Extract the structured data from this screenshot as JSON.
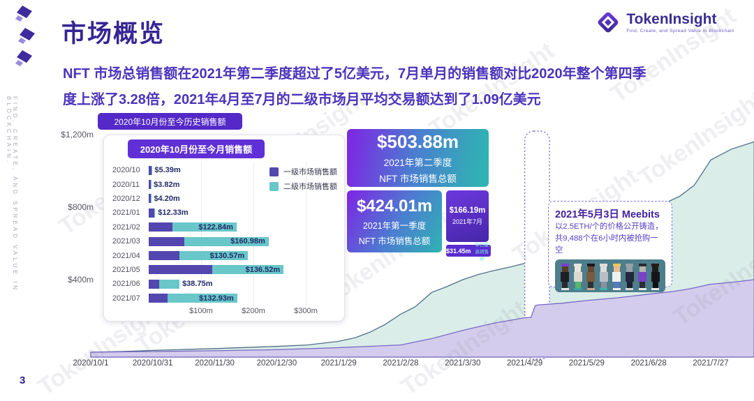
{
  "header": {
    "title": "市场概览",
    "logo_name": "TokenInsight",
    "logo_tagline": "Find, Create, and Spread Value in Blockchain"
  },
  "summary": "NFT 市场总销售额在2021年第二季度超过了5亿美元，7月单月的销售额对比2020年整个第四季度上涨了3.28倍，2021年4月至7月的二级市场月平均交易额达到了1.09亿美元",
  "side_text": "FIND, CREATE, AND SPREAD VALUE IN BLOCKCHAIN.",
  "watermark_text": "TokenInsight",
  "page_number": "3",
  "history_badge": "2020年10月份至今历史销售额",
  "stat_boxes": {
    "q2": {
      "value": "$503.88m",
      "line1": "2021年第二季度",
      "line2": "NFT 市场销售总额"
    },
    "q1": {
      "value": "$424.01m",
      "line1": "2021年第一季度",
      "line2": "NFT 市场销售总额"
    },
    "july": {
      "value": "$166.19m",
      "line1": "2021年7月"
    },
    "daily": {
      "value": "$31.45m",
      "label": "单日最高销售额"
    }
  },
  "callout": {
    "title": "2021年5月3日 Meebits",
    "line1": "以2.5ETH/个的价格公开铸造，",
    "line2": "共9,488个在6小时内被抢购一空",
    "meebits": [
      {
        "hat": "#7a3fd0",
        "head": "#5a3a28",
        "torso": "#1e1e24",
        "legs": "#2a2a30",
        "shoes": "#e8e8e8"
      },
      {
        "hat": "#e8e4de",
        "head": "#e8e4de",
        "torso": "#dcd8d2",
        "legs": "#55b868",
        "shoes": "#3aa8a0"
      },
      {
        "hat": "#1a1a1a",
        "head": "#6a4530",
        "torso": "#7a5a40",
        "legs": "#33302c",
        "shoes": "#c8a898"
      },
      {
        "hat": "#e0ddd8",
        "head": "#e0ddd8",
        "torso": "#b8bcc4",
        "legs": "#8a90a0",
        "shoes": "#40b0a8"
      },
      {
        "hat": "#e8c860",
        "head": "#e8ba90",
        "torso": "#f0f0ee",
        "legs": "#5878c0",
        "shoes": "#f0f0f0"
      },
      {
        "hat": "#9aa0a8",
        "head": "#9aa0a8",
        "torso": "#23283a",
        "legs": "#1c2030",
        "shoes": "#d8d8d8"
      },
      {
        "hat": "#2a2a2e",
        "head": "#b8b4b0",
        "torso": "#7a42c8",
        "legs": "#2e2a36",
        "shoes": "#e8e8e8"
      },
      {
        "hat": "#241c18",
        "head": "#241c18",
        "torso": "#16161a",
        "legs": "#101014",
        "shoes": "#e8e8e8"
      }
    ]
  },
  "chart_data": [
    {
      "type": "bar",
      "orientation": "horizontal-stacked",
      "title": "2020年10月份至今月销售额",
      "categories": [
        "2020/10",
        "2020/11",
        "2020/12",
        "2021/01",
        "2021/02",
        "2021/03",
        "2021/04",
        "2021/05",
        "2021/06",
        "2021/07"
      ],
      "series": [
        {
          "name": "一级市场销售额",
          "color": "#5346ae",
          "values": [
            5.4,
            3.8,
            4.2,
            11,
            45,
            68,
            59,
            121,
            20,
            36
          ]
        },
        {
          "name": "二级市场销售额",
          "color": "#69c6c9",
          "values": [
            0.5,
            0.3,
            0.4,
            1.3,
            122.84,
            160.98,
            130.57,
            136.52,
            38.75,
            132.93
          ]
        }
      ],
      "bar_labels": [
        "$5.39m",
        "$3.82m",
        "$4.20m",
        "$12.33m",
        "$122.84m",
        "$160.98m",
        "$130.57m",
        "$136.52m",
        "$38.75m",
        "$132.93m"
      ],
      "x_ticks": [
        "$100m",
        "$200m",
        "$300m"
      ],
      "x_tick_values": [
        100,
        200,
        300
      ],
      "xlim": [
        0,
        360
      ],
      "unit": "$m"
    },
    {
      "type": "area",
      "title": "2020年10月份至今历史销售额 (累计, cumulative $m)",
      "x_ticks": [
        "2020/10/1",
        "2020/10/31",
        "2020/11/30",
        "2020/12/30",
        "2021/1/29",
        "2021/2/28",
        "2021/3/30",
        "2021/4/29",
        "2021/5/29",
        "2021/6/28",
        "2021/7/27"
      ],
      "y_ticks": [
        "$400m",
        "$800m",
        "$1,200m"
      ],
      "y_tick_values": [
        400,
        800,
        1200
      ],
      "ylim": [
        0,
        1450
      ],
      "values_at_ticks": {
        "total_cumulative": [
          0,
          10,
          20,
          32,
          60,
          210,
          400,
          490,
          680,
          780,
          1060
        ],
        "primary_cumulative": [
          0,
          4,
          8,
          14,
          25,
          40,
          120,
          190,
          285,
          320,
          375
        ]
      },
      "highlight": {
        "label_date": "2021/5/3",
        "from_day": 210,
        "to_day": 222
      },
      "series": [
        {
          "name": "二级市场累计销售额(总额上边界)",
          "fill": "#daede8",
          "line": "#4e7086",
          "points": [
            [
              0,
              0
            ],
            [
              15,
              4
            ],
            [
              30,
              10
            ],
            [
              60,
              20
            ],
            [
              90,
              32
            ],
            [
              105,
              40
            ],
            [
              120,
              60
            ],
            [
              128,
              80
            ],
            [
              135,
              110
            ],
            [
              142,
              150
            ],
            [
              150,
              210
            ],
            [
              157,
              250
            ],
            [
              165,
              330
            ],
            [
              172,
              360
            ],
            [
              180,
              400
            ],
            [
              188,
              430
            ],
            [
              195,
              450
            ],
            [
              203,
              470
            ],
            [
              210,
              490
            ],
            [
              213,
              500
            ],
            [
              215,
              600
            ],
            [
              216,
              620
            ],
            [
              222,
              640
            ],
            [
              228,
              650
            ],
            [
              240,
              680
            ],
            [
              255,
              720
            ],
            [
              270,
              780
            ],
            [
              285,
              860
            ],
            [
              292,
              920
            ],
            [
              296,
              990
            ],
            [
              300,
              1060
            ],
            [
              310,
              1120
            ],
            [
              321,
              1160
            ]
          ]
        },
        {
          "name": "一级市场累计销售额",
          "fill": "#d4ccec",
          "line": "#7668c5",
          "points": [
            [
              0,
              0
            ],
            [
              30,
              4
            ],
            [
              60,
              8
            ],
            [
              90,
              14
            ],
            [
              120,
              25
            ],
            [
              150,
              40
            ],
            [
              165,
              75
            ],
            [
              180,
              120
            ],
            [
              195,
              160
            ],
            [
              210,
              190
            ],
            [
              213,
              192
            ],
            [
              215,
              255
            ],
            [
              216,
              260
            ],
            [
              228,
              270
            ],
            [
              240,
              285
            ],
            [
              255,
              300
            ],
            [
              270,
              320
            ],
            [
              282,
              335
            ],
            [
              290,
              350
            ],
            [
              296,
              365
            ],
            [
              300,
              375
            ],
            [
              310,
              385
            ],
            [
              321,
              400
            ]
          ]
        }
      ]
    }
  ]
}
